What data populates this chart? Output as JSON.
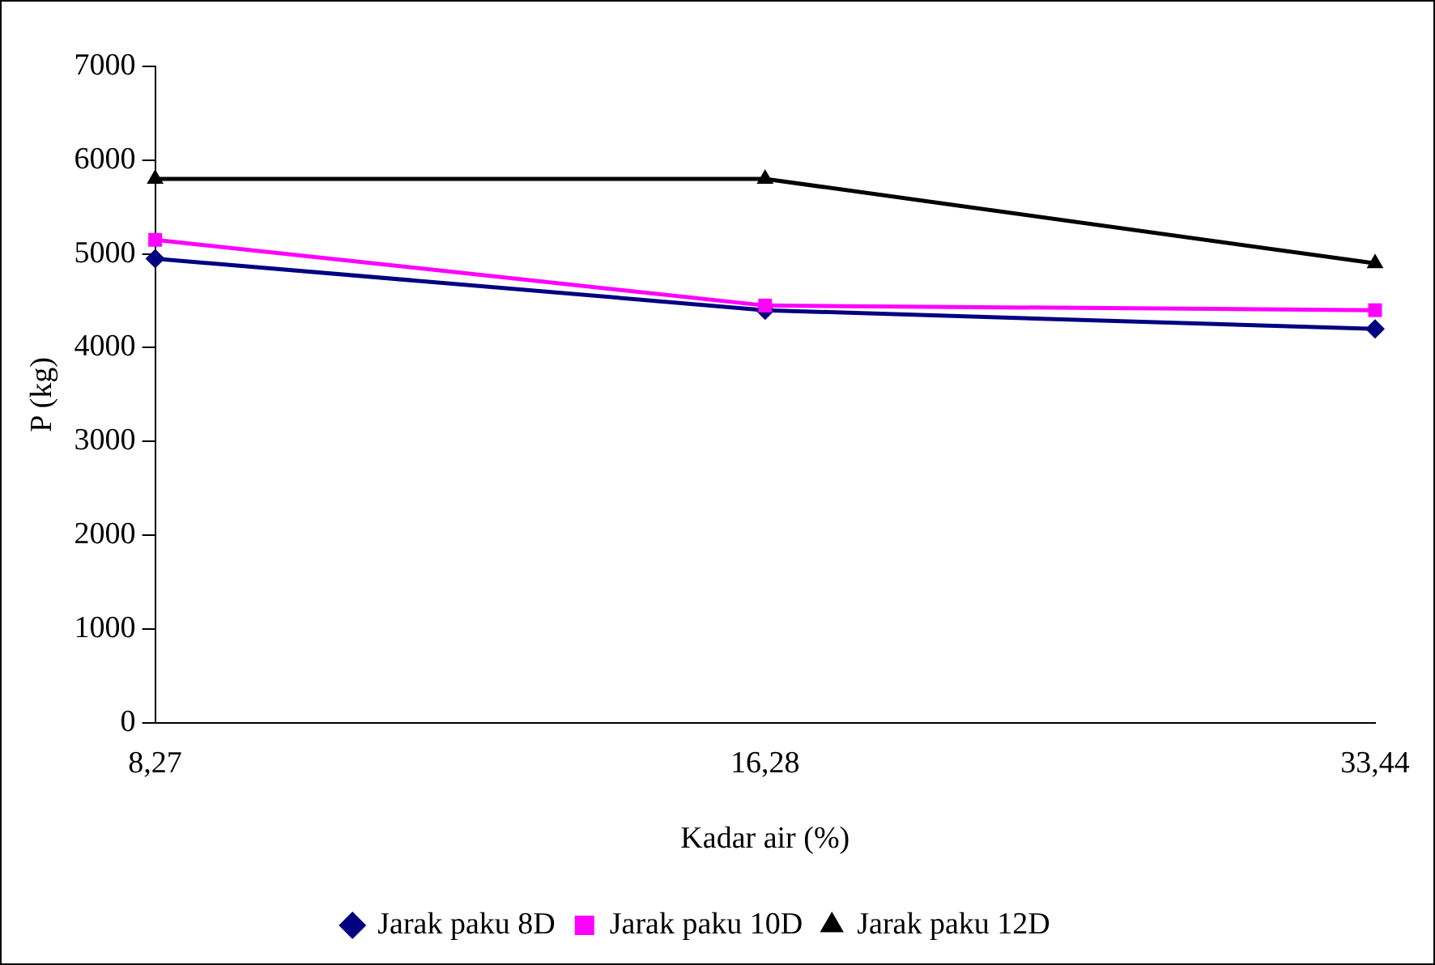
{
  "chart_data": {
    "type": "line",
    "xlabel": "Kadar air (%)",
    "ylabel": "P (kg)",
    "categories": [
      "8,27",
      "16,28",
      "33,44"
    ],
    "series": [
      {
        "name": "Jarak paku 8D",
        "color": "#000080",
        "marker": "diamond",
        "values": [
          4950,
          4400,
          4200
        ]
      },
      {
        "name": "Jarak paku 10D",
        "color": "#ff00ff",
        "marker": "square",
        "values": [
          5150,
          4450,
          4400
        ]
      },
      {
        "name": "Jarak paku 12D",
        "color": "#000000",
        "marker": "triangle",
        "values": [
          5800,
          5800,
          4900
        ]
      }
    ],
    "ylim": [
      0,
      7000
    ],
    "yticks": [
      0,
      1000,
      2000,
      3000,
      4000,
      5000,
      6000,
      7000
    ],
    "grid": false,
    "legend": "bottom",
    "line_style": "solid"
  }
}
